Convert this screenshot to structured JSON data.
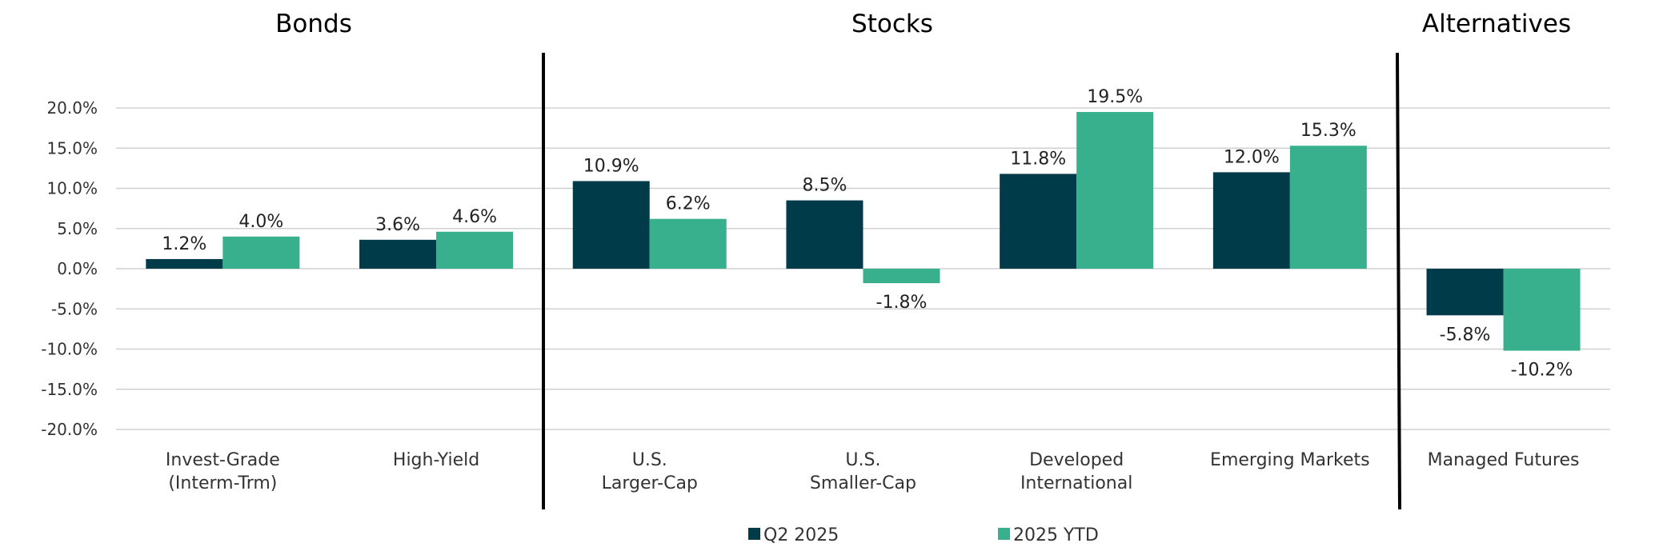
{
  "chart_data": {
    "type": "bar",
    "groups": [
      {
        "title": "Bonds",
        "categories": [
          0,
          1
        ]
      },
      {
        "title": "Stocks",
        "categories": [
          2,
          3,
          4,
          5
        ]
      },
      {
        "title": "Alternatives",
        "categories": [
          6
        ]
      }
    ],
    "categories": [
      [
        "Invest-Grade",
        "(Interm-Trm)"
      ],
      [
        "High-Yield"
      ],
      [
        "U.S.",
        "Larger-Cap"
      ],
      [
        "U.S.",
        "Smaller-Cap"
      ],
      [
        "Developed",
        "International"
      ],
      [
        "Emerging Markets"
      ],
      [
        "Managed Futures"
      ]
    ],
    "series": [
      {
        "name": "Q2 2025",
        "color": "#003b4a",
        "values": [
          1.2,
          3.6,
          10.9,
          8.5,
          11.8,
          12.0,
          -5.8
        ],
        "labels": [
          "1.2%",
          "3.6%",
          "10.9%",
          "8.5%",
          "11.8%",
          "12.0%",
          "-5.8%"
        ]
      },
      {
        "name": "2025 YTD",
        "color": "#38b08e",
        "values": [
          4.0,
          4.6,
          6.2,
          -1.8,
          19.5,
          15.3,
          -10.2
        ],
        "labels": [
          "4.0%",
          "4.6%",
          "6.2%",
          "-1.8%",
          "19.5%",
          "15.3%",
          "-10.2%"
        ]
      }
    ],
    "ylim": [
      -20,
      20
    ],
    "yticks": [
      20,
      15,
      10,
      5,
      0,
      -5,
      -10,
      -15,
      -20
    ],
    "ytick_labels": [
      "20.0%",
      "15.0%",
      "10.0%",
      "5.0%",
      "0.0%",
      "-5.0%",
      "-10.0%",
      "-15.0%",
      "-20.0%"
    ],
    "grid": true,
    "legend": "bottom"
  }
}
